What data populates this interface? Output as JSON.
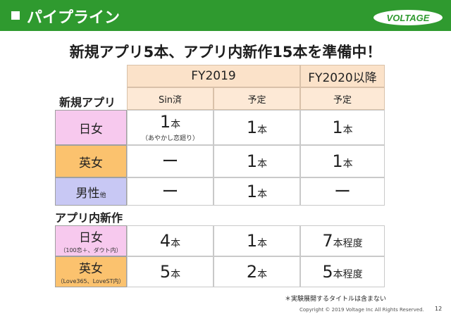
{
  "header": {
    "title": "パイプライン",
    "logo_text": "VOLTAGE",
    "brand_color": "#2f9a2f"
  },
  "headline": "新規アプリ5本、アプリ内新作15本を準備中！",
  "columns": {
    "fy2019": "FY2019",
    "fy2020": "FY2020以降",
    "sub": [
      "Sin済",
      "予定",
      "予定"
    ]
  },
  "sections": {
    "new_apps": "新規アプリ",
    "in_app": "アプリ内新作"
  },
  "new_apps_rows": [
    {
      "label": "日女",
      "label_small": "",
      "c1": "1",
      "c1_unit": "本",
      "c1_note": "（あやかし恋廻り）",
      "c2": "1",
      "c2_unit": "本",
      "c3": "1",
      "c3_unit": "本"
    },
    {
      "label": "英女",
      "label_small": "",
      "c1": "ー",
      "c1_unit": "",
      "c2": "1",
      "c2_unit": "本",
      "c3": "1",
      "c3_unit": "本"
    },
    {
      "label": "男性",
      "label_small": "他",
      "c1": "ー",
      "c1_unit": "",
      "c2": "1",
      "c2_unit": "本",
      "c3": "ー",
      "c3_unit": ""
    }
  ],
  "in_app_rows": [
    {
      "label": "日女",
      "label_small": "（100恋＋、ダウト内）",
      "c1": "4",
      "c1_unit": "本",
      "c2": "1",
      "c2_unit": "本",
      "c3": "7",
      "c3_unit": "本程度"
    },
    {
      "label": "英女",
      "label_small": "（Love365、LoveST内）",
      "c1": "5",
      "c1_unit": "本",
      "c2": "2",
      "c2_unit": "本",
      "c3": "5",
      "c3_unit": "本程度"
    }
  ],
  "footnote": "＊実験展開するタイトルは含まない",
  "copyright": "Copyright © 2019 Voltage Inc  All Rights Reserved.",
  "page_number": "12"
}
